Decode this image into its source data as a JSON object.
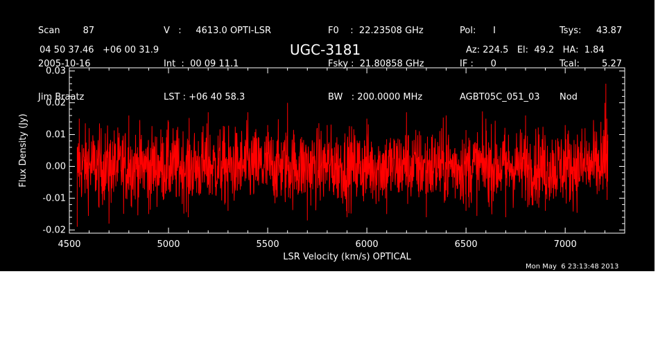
{
  "header": {
    "col1": [
      "Scan        87",
      "2005-10-16",
      "Jim Braatz"
    ],
    "col2": [
      "V   :     4613.0 OPTI-LSR",
      "Int  :  00 09 11.1",
      "LST : +06 40 58.3"
    ],
    "col3": [
      "F0    :  22.23508 GHz",
      "Fsky :  21.80858 GHz",
      "BW   : 200.0000 MHz"
    ],
    "col4": [
      "Pol:      I",
      "IF :      0",
      "AGBT05C_051_03"
    ],
    "col5_labels": [
      "Tsys:",
      "Tcal:",
      "Nod"
    ],
    "col5_values": [
      "43.87",
      "5.27",
      ""
    ],
    "coords": "04 50 37.46   +06 00 31.9",
    "source": "UGC-3181",
    "azel": "Az: 224.5   El:  49.2   HA:  1.84",
    "timestamp": "Mon May  6 23:13:48 2013"
  },
  "colors": {
    "background": "#000000",
    "axes": "#ffffff",
    "series": "#ff0000"
  },
  "chart_data": {
    "type": "line",
    "title": "UGC-3181",
    "xlabel": "LSR Velocity (km/s) OPTICAL",
    "ylabel": "Flux Density (Jy)",
    "xlim": [
      4500,
      7300
    ],
    "ylim": [
      -0.021,
      0.031
    ],
    "xticks": [
      4500,
      5000,
      5500,
      6000,
      6500,
      7000
    ],
    "xtick_labels": [
      "4500",
      "5000",
      "5500",
      "6000",
      "6500",
      "7000"
    ],
    "yticks": [
      -0.02,
      -0.01,
      0.0,
      0.01,
      0.02,
      0.03
    ],
    "ytick_labels": [
      "-0.02",
      "-0.01",
      "0.00",
      "0.01",
      "0.02",
      "0.03"
    ],
    "grid": false,
    "series": [
      {
        "x_range": [
          4540,
          7215
        ],
        "noise_rms": 0.006,
        "x": [
          4540,
          4550,
          4600,
          4650,
          4700,
          4800,
          4900,
          5000,
          5100,
          5200,
          5300,
          5400,
          5500,
          5600,
          5700,
          5800,
          5900,
          6000,
          6100,
          6200,
          6300,
          6400,
          6500,
          6600,
          6700,
          6800,
          6900,
          7000,
          7100,
          7150,
          7180,
          7200,
          7205,
          7210,
          7215
        ],
        "y": [
          -0.019,
          0.015,
          0.012,
          -0.013,
          -0.018,
          0.016,
          -0.015,
          0.014,
          -0.016,
          0.017,
          -0.014,
          0.017,
          0.013,
          0.02,
          -0.017,
          0.013,
          -0.016,
          0.015,
          -0.015,
          0.017,
          -0.016,
          0.016,
          -0.014,
          0.015,
          -0.016,
          0.016,
          -0.014,
          0.013,
          0.012,
          0.011,
          0.014,
          0.02,
          0.026,
          0.015,
          0.01
        ]
      }
    ]
  }
}
